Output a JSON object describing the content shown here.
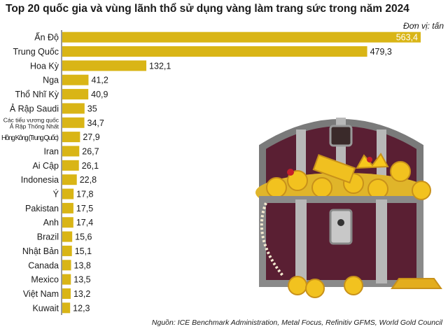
{
  "title": "Top 20 quốc gia và vùng lãnh thổ sử dụng vàng làm trang sức trong năm 2024",
  "unit_label": "Đơn vị: tấn",
  "source": "Nguồn: ICE Benchmark Administration, Metal Focus, Refinitiv GFMS, World Gold Council",
  "colors": {
    "bar": "#d9b516",
    "text": "#1a1a1a",
    "axis": "#333333"
  },
  "chart_data": {
    "type": "bar",
    "orientation": "horizontal",
    "title": "Top 20 quốc gia và vùng lãnh thổ sử dụng vàng làm trang sức trong năm 2024",
    "unit": "Đơn vị: tấn",
    "categories": [
      "Ấn Độ",
      "Trung Quốc",
      "Hoa Kỳ",
      "Nga",
      "Thổ Nhĩ Kỳ",
      "Ả Rập Saudi",
      "Các tiểu vương quốc Ả Rập Thống Nhất",
      "Hồng Kông (Trung Quốc)",
      "Iran",
      "Ai Cập",
      "Indonesia",
      "Ý",
      "Pakistan",
      "Anh",
      "Brazil",
      "Nhật Bản",
      "Canada",
      "Mexico",
      "Việt Nam",
      "Kuwait"
    ],
    "category_lines": [
      [
        "Ấn Độ"
      ],
      [
        "Trung Quốc"
      ],
      [
        "Hoa Kỳ"
      ],
      [
        "Nga"
      ],
      [
        "Thổ Nhĩ Kỳ"
      ],
      [
        "Ả Rập Saudi"
      ],
      [
        "Các tiểu vương quốc",
        "Ả Rập Thống Nhất"
      ],
      [
        "Hồng Kông (Trung Quốc)"
      ],
      [
        "Iran"
      ],
      [
        "Ai Cập"
      ],
      [
        "Indonesia"
      ],
      [
        "Ý"
      ],
      [
        "Pakistan"
      ],
      [
        "Anh"
      ],
      [
        "Brazil"
      ],
      [
        "Nhật Bản"
      ],
      [
        "Canada"
      ],
      [
        "Mexico"
      ],
      [
        "Việt Nam"
      ],
      [
        "Kuwait"
      ]
    ],
    "values": [
      563.4,
      479.3,
      132.1,
      41.2,
      40.9,
      35,
      34.7,
      27.9,
      26.7,
      26.1,
      22.8,
      17.8,
      17.5,
      17.4,
      15.6,
      15.1,
      13.8,
      13.5,
      13.2,
      12.3
    ],
    "value_labels": [
      "563,4",
      "479,3",
      "132,1",
      "41,2",
      "40,9",
      "35",
      "34,7",
      "27,9",
      "26,7",
      "26,1",
      "22,8",
      "17,8",
      "17,5",
      "17,4",
      "15,6",
      "15,1",
      "13,8",
      "13,5",
      "13,2",
      "12,3"
    ],
    "xlim": [
      0,
      563.4
    ]
  }
}
